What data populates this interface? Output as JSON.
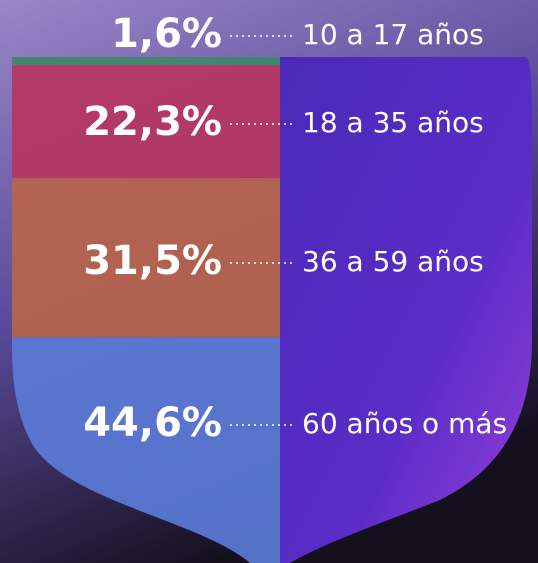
{
  "chart_data": {
    "type": "stacked-bar",
    "categories": [
      "10 a 17 años",
      "18 a 35 años",
      "36 a 59 años",
      "60 años o más"
    ],
    "values": [
      1.6,
      22.3,
      31.5,
      44.6
    ],
    "value_labels": [
      "1,6%",
      "22,3%",
      "31,5%",
      "44,6%"
    ],
    "colors": [
      "#3c8a66",
      "#b7355f",
      "#b8644a",
      "#5b7bd8"
    ]
  }
}
